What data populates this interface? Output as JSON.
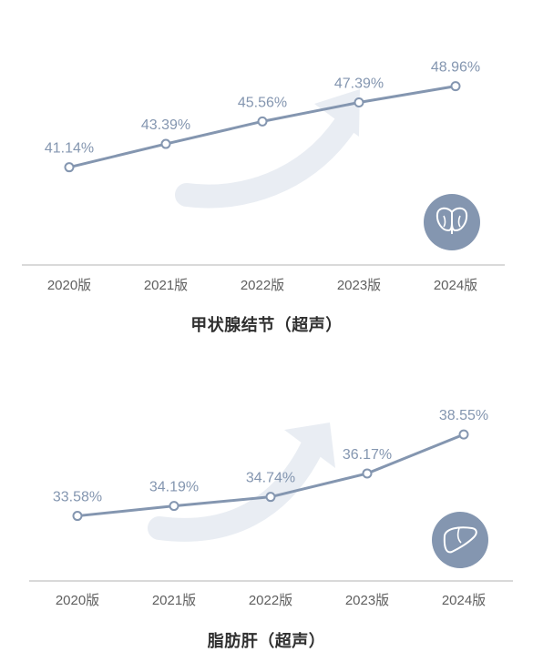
{
  "theme": {
    "line": "#8496b0",
    "label": "#8496b0",
    "arrow": "#e9edf3",
    "axis": "#d9d9d9",
    "tick": "#5f5f5f"
  },
  "icons": [
    "thyroid-icon",
    "liver-icon"
  ],
  "chart_data": [
    {
      "type": "line",
      "title": "甲状腺结节（超声）",
      "categories": [
        "2020版",
        "2021版",
        "2022版",
        "2023版",
        "2024版"
      ],
      "values": [
        41.14,
        43.39,
        45.56,
        47.39,
        48.96
      ],
      "value_labels": [
        "41.14%",
        "43.39%",
        "45.56%",
        "47.39%",
        "48.96%"
      ],
      "unit": "%",
      "ylim": [
        34,
        52
      ],
      "grid": false,
      "legend": "none"
    },
    {
      "type": "line",
      "title": "脂肪肝（超声）",
      "categories": [
        "2020版",
        "2021版",
        "2022版",
        "2023版",
        "2024版"
      ],
      "values": [
        33.58,
        34.19,
        34.74,
        36.17,
        38.55
      ],
      "value_labels": [
        "33.58%",
        "34.19%",
        "34.74%",
        "36.17%",
        "38.55%"
      ],
      "unit": "%",
      "ylim": [
        31,
        40.5
      ],
      "grid": false,
      "legend": "none"
    }
  ]
}
